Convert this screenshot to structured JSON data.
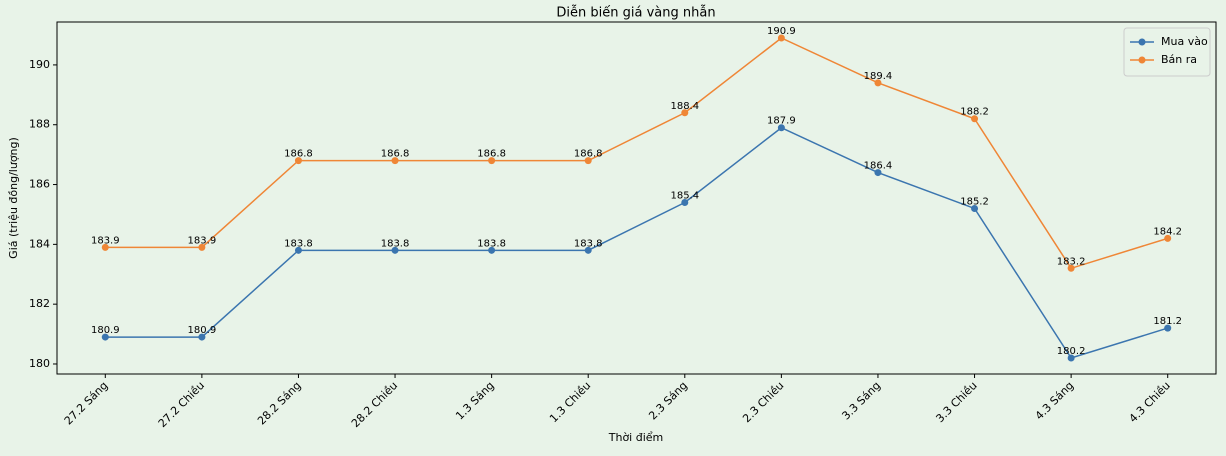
{
  "chart_data": {
    "type": "line",
    "title": "Diễn biến giá vàng nhẫn",
    "x_label": "Thời điểm",
    "y_label": "Giá (triệu đồng/lượng)",
    "categories": [
      "27.2 Sáng",
      "27.2 Chiều",
      "28.2 Sáng",
      "28.2 Chiều",
      "1.3 Sáng",
      "1.3 Chiều",
      "2.3 Sáng",
      "2.3 Chiều",
      "3.3 Sáng",
      "3.3 Chiều",
      "4.3 Sáng",
      "4.3 Chiều"
    ],
    "series": [
      {
        "name": "Mua vào",
        "color": "#3b75af",
        "values": [
          180.9,
          180.9,
          183.8,
          183.8,
          183.8,
          183.8,
          185.4,
          187.9,
          186.4,
          185.2,
          180.2,
          181.2
        ]
      },
      {
        "name": "Bán ra",
        "color": "#ef8636",
        "values": [
          183.9,
          183.9,
          186.8,
          186.8,
          186.8,
          186.8,
          188.4,
          190.9,
          189.4,
          188.2,
          183.2,
          184.2
        ]
      }
    ],
    "ylim": [
      179.665,
      191.435
    ],
    "yticks": [
      180,
      182,
      184,
      186,
      188,
      190
    ],
    "grid": false,
    "legend": "upper-right"
  }
}
